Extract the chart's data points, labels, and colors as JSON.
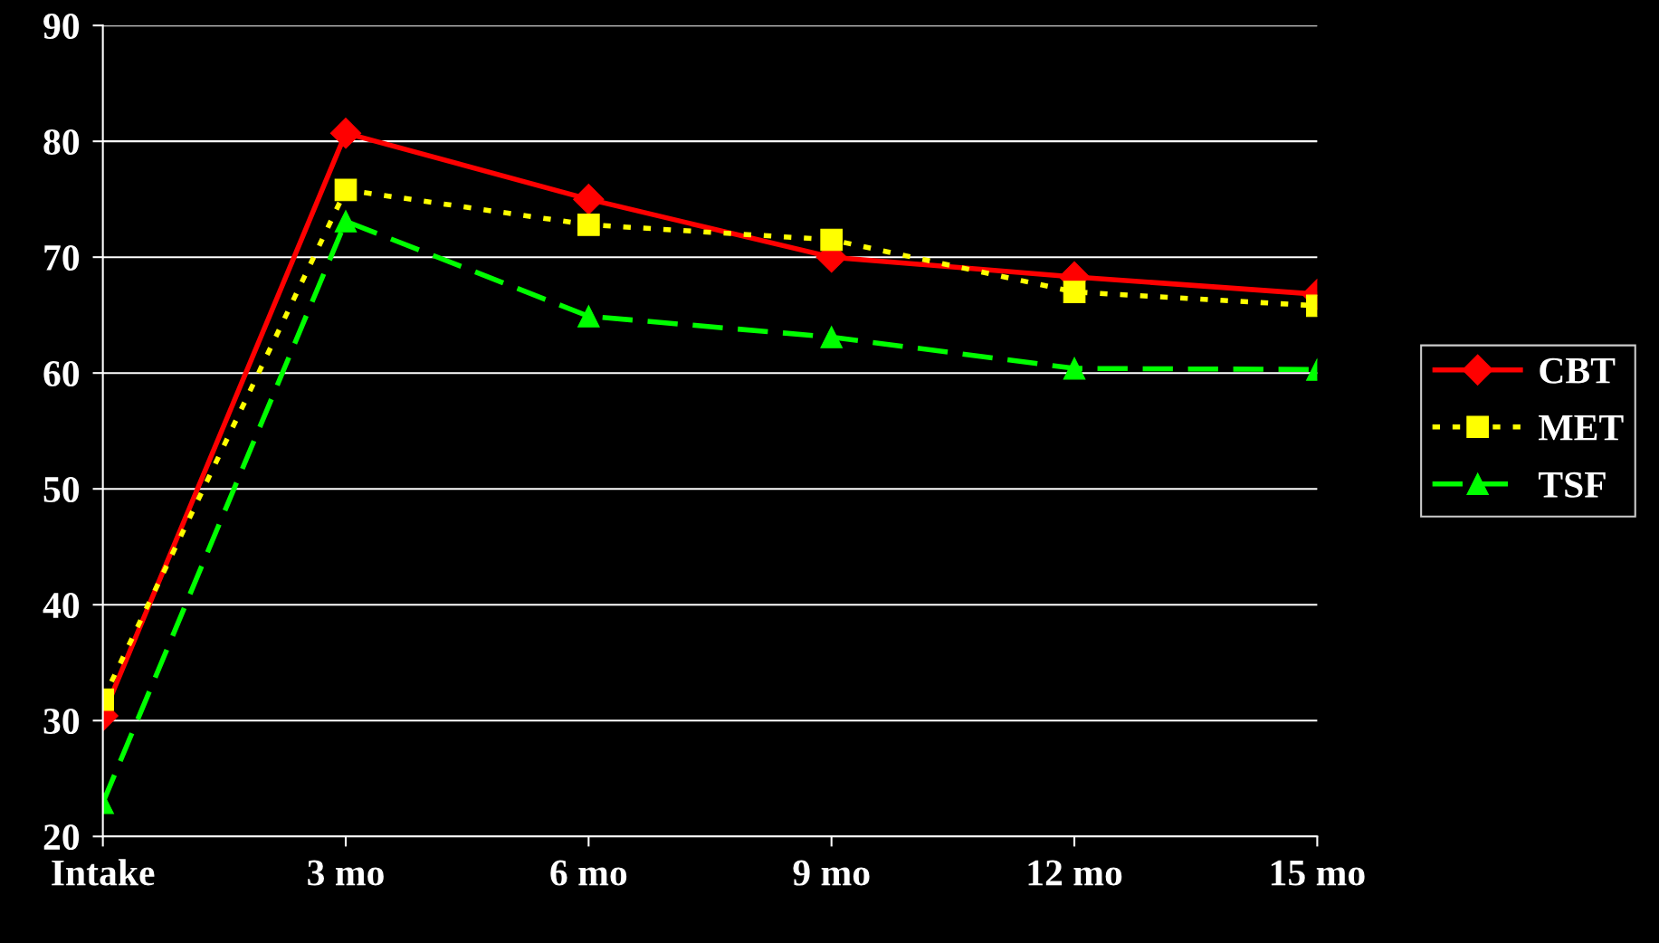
{
  "chart_data": {
    "type": "line",
    "categories": [
      "Intake",
      "3 mo",
      "6 mo",
      "9 mo",
      "12 mo",
      "15 mo"
    ],
    "series": [
      {
        "name": "CBT",
        "color": "#ff0000",
        "marker": "diamond",
        "line_style": "solid",
        "values": [
          30.4,
          80.7,
          75.0,
          70.0,
          68.3,
          66.8
        ]
      },
      {
        "name": "MET",
        "color": "#ffff00",
        "marker": "square",
        "line_style": "dotted",
        "values": [
          31.8,
          75.8,
          72.8,
          71.5,
          67.0,
          65.8
        ]
      },
      {
        "name": "TSF",
        "color": "#00ff00",
        "marker": "triangle",
        "line_style": "dashed",
        "values": [
          22.9,
          73.1,
          64.9,
          63.1,
          60.4,
          60.3
        ]
      }
    ],
    "ylim": [
      20,
      90
    ],
    "yticks": [
      20,
      30,
      40,
      50,
      60,
      70,
      80,
      90
    ],
    "grid": "y",
    "legend": "right"
  }
}
